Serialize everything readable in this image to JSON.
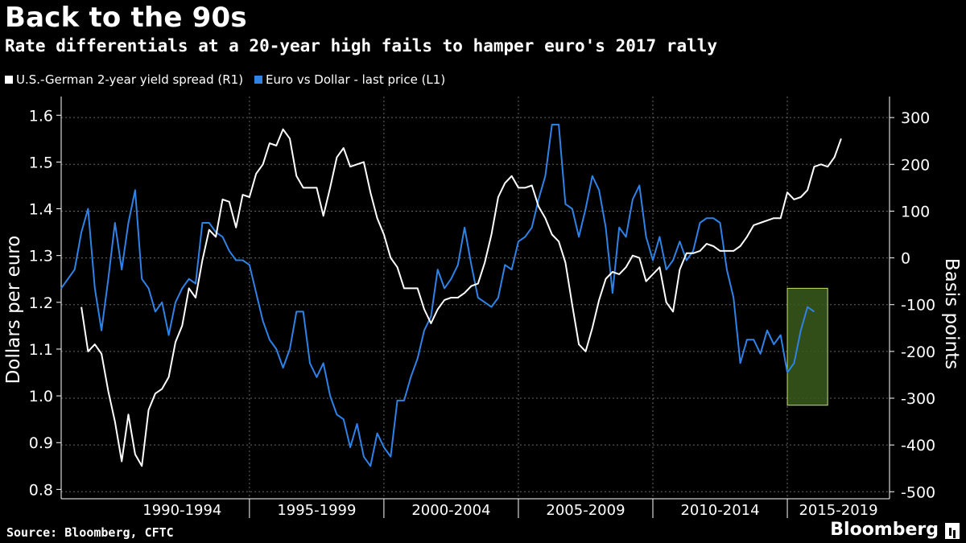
{
  "title": "Back to the 90s",
  "subtitle": "Rate differentials at a 20-year high fails to hamper euro's 2017 rally",
  "source": "Source: Bloomberg, CFTC",
  "brand": "Bloomberg",
  "colors": {
    "background": "#000000",
    "spread": "#ffffff",
    "euro": "#2f82e6",
    "highlight_fill": "#3a5a1c",
    "highlight_stroke": "#c8e06a",
    "grid": "#666666"
  },
  "chart_data": {
    "type": "line",
    "title": "Back to the 90s",
    "left_axis": {
      "label": "Dollars per euro",
      "ticks": [
        "0.8",
        "0.9",
        "1.0",
        "1.1",
        "1.2",
        "1.3",
        "1.4",
        "1.5",
        "1.6"
      ],
      "range": [
        0.78,
        1.64
      ]
    },
    "right_axis": {
      "label": "Basis points",
      "ticks": [
        "-500",
        "-400",
        "-300",
        "-200",
        "-100",
        "0",
        "100",
        "200",
        "300"
      ],
      "range": [
        -515,
        345
      ]
    },
    "x_axis": {
      "categories": [
        "1990-1994",
        "1995-1999",
        "2000-2004",
        "2005-2009",
        "2010-2014",
        "2015-2019"
      ],
      "range": [
        1988.0,
        2018.8
      ]
    },
    "grid": true,
    "legend_position": "top-left",
    "series": [
      {
        "name": "U.S.-German 2-year yield spread (R1)",
        "axis": "right",
        "points": [
          [
            1988.75,
            -105
          ],
          [
            1989.0,
            -200
          ],
          [
            1989.25,
            -185
          ],
          [
            1989.5,
            -205
          ],
          [
            1989.75,
            -285
          ],
          [
            1990.0,
            -350
          ],
          [
            1990.25,
            -435
          ],
          [
            1990.5,
            -335
          ],
          [
            1990.75,
            -420
          ],
          [
            1991.0,
            -445
          ],
          [
            1991.25,
            -325
          ],
          [
            1991.5,
            -290
          ],
          [
            1991.75,
            -280
          ],
          [
            1992.0,
            -255
          ],
          [
            1992.25,
            -180
          ],
          [
            1992.5,
            -145
          ],
          [
            1992.75,
            -65
          ],
          [
            1993.0,
            -85
          ],
          [
            1993.25,
            -5
          ],
          [
            1993.5,
            60
          ],
          [
            1993.75,
            45
          ],
          [
            1994.0,
            125
          ],
          [
            1994.25,
            120
          ],
          [
            1994.5,
            65
          ],
          [
            1994.75,
            135
          ],
          [
            1995.0,
            130
          ],
          [
            1995.25,
            180
          ],
          [
            1995.5,
            200
          ],
          [
            1995.75,
            245
          ],
          [
            1996.0,
            240
          ],
          [
            1996.25,
            275
          ],
          [
            1996.5,
            255
          ],
          [
            1996.75,
            175
          ],
          [
            1997.0,
            150
          ],
          [
            1997.25,
            150
          ],
          [
            1997.5,
            150
          ],
          [
            1997.75,
            90
          ],
          [
            1998.0,
            150
          ],
          [
            1998.25,
            215
          ],
          [
            1998.5,
            235
          ],
          [
            1998.75,
            195
          ],
          [
            1999.0,
            200
          ],
          [
            1999.25,
            205
          ],
          [
            1999.5,
            140
          ],
          [
            1999.75,
            85
          ],
          [
            2000.0,
            50
          ],
          [
            2000.25,
            0
          ],
          [
            2000.5,
            -20
          ],
          [
            2000.75,
            -65
          ],
          [
            2001.0,
            -65
          ],
          [
            2001.25,
            -65
          ],
          [
            2001.5,
            -110
          ],
          [
            2001.75,
            -140
          ],
          [
            2002.0,
            -110
          ],
          [
            2002.25,
            -90
          ],
          [
            2002.5,
            -85
          ],
          [
            2002.75,
            -85
          ],
          [
            2003.0,
            -75
          ],
          [
            2003.25,
            -60
          ],
          [
            2003.5,
            -55
          ],
          [
            2003.75,
            -10
          ],
          [
            2004.0,
            50
          ],
          [
            2004.25,
            130
          ],
          [
            2004.5,
            160
          ],
          [
            2004.75,
            175
          ],
          [
            2005.0,
            150
          ],
          [
            2005.25,
            150
          ],
          [
            2005.5,
            155
          ],
          [
            2005.75,
            110
          ],
          [
            2006.0,
            85
          ],
          [
            2006.25,
            50
          ],
          [
            2006.5,
            35
          ],
          [
            2006.75,
            -10
          ],
          [
            2007.0,
            -100
          ],
          [
            2007.25,
            -185
          ],
          [
            2007.5,
            -200
          ],
          [
            2007.75,
            -150
          ],
          [
            2008.0,
            -90
          ],
          [
            2008.25,
            -45
          ],
          [
            2008.5,
            -30
          ],
          [
            2008.75,
            -35
          ],
          [
            2009.0,
            -20
          ],
          [
            2009.25,
            5
          ],
          [
            2009.5,
            0
          ],
          [
            2009.75,
            -50
          ],
          [
            2010.0,
            -35
          ],
          [
            2010.25,
            -20
          ],
          [
            2010.5,
            -95
          ],
          [
            2010.75,
            -115
          ],
          [
            2011.0,
            -25
          ],
          [
            2011.25,
            10
          ],
          [
            2011.5,
            10
          ],
          [
            2011.75,
            15
          ],
          [
            2012.0,
            30
          ],
          [
            2012.25,
            25
          ],
          [
            2012.5,
            15
          ],
          [
            2012.75,
            15
          ],
          [
            2013.0,
            15
          ],
          [
            2013.25,
            25
          ],
          [
            2013.5,
            45
          ],
          [
            2013.75,
            70
          ],
          [
            2014.0,
            75
          ],
          [
            2014.25,
            80
          ],
          [
            2014.5,
            85
          ],
          [
            2014.75,
            85
          ],
          [
            2015.0,
            140
          ],
          [
            2015.25,
            125
          ],
          [
            2015.5,
            130
          ],
          [
            2015.75,
            145
          ],
          [
            2016.0,
            195
          ],
          [
            2016.25,
            200
          ],
          [
            2016.5,
            195
          ],
          [
            2016.75,
            215
          ],
          [
            2017.0,
            255
          ]
        ]
      },
      {
        "name": "Euro vs Dollar - last price (L1)",
        "axis": "left",
        "points": [
          [
            1988.0,
            1.23
          ],
          [
            1988.25,
            1.25
          ],
          [
            1988.5,
            1.27
          ],
          [
            1988.75,
            1.35
          ],
          [
            1989.0,
            1.4
          ],
          [
            1989.25,
            1.23
          ],
          [
            1989.5,
            1.14
          ],
          [
            1989.75,
            1.25
          ],
          [
            1990.0,
            1.37
          ],
          [
            1990.25,
            1.27
          ],
          [
            1990.5,
            1.37
          ],
          [
            1990.75,
            1.44
          ],
          [
            1991.0,
            1.25
          ],
          [
            1991.25,
            1.23
          ],
          [
            1991.5,
            1.18
          ],
          [
            1991.75,
            1.2
          ],
          [
            1992.0,
            1.13
          ],
          [
            1992.25,
            1.2
          ],
          [
            1992.5,
            1.23
          ],
          [
            1992.75,
            1.25
          ],
          [
            1993.0,
            1.24
          ],
          [
            1993.25,
            1.37
          ],
          [
            1993.5,
            1.37
          ],
          [
            1993.75,
            1.35
          ],
          [
            1994.0,
            1.34
          ],
          [
            1994.25,
            1.31
          ],
          [
            1994.5,
            1.29
          ],
          [
            1994.75,
            1.29
          ],
          [
            1995.0,
            1.28
          ],
          [
            1995.25,
            1.22
          ],
          [
            1995.5,
            1.16
          ],
          [
            1995.75,
            1.12
          ],
          [
            1996.0,
            1.1
          ],
          [
            1996.25,
            1.06
          ],
          [
            1996.5,
            1.1
          ],
          [
            1996.75,
            1.18
          ],
          [
            1997.0,
            1.18
          ],
          [
            1997.25,
            1.07
          ],
          [
            1997.5,
            1.04
          ],
          [
            1997.75,
            1.07
          ],
          [
            1998.0,
            1.0
          ],
          [
            1998.25,
            0.96
          ],
          [
            1998.5,
            0.95
          ],
          [
            1998.75,
            0.89
          ],
          [
            1999.0,
            0.94
          ],
          [
            1999.25,
            0.87
          ],
          [
            1999.5,
            0.85
          ],
          [
            1999.75,
            0.92
          ],
          [
            2000.0,
            0.89
          ],
          [
            2000.25,
            0.87
          ],
          [
            2000.5,
            0.99
          ],
          [
            2000.75,
            0.99
          ],
          [
            2001.0,
            1.04
          ],
          [
            2001.25,
            1.08
          ],
          [
            2001.5,
            1.14
          ],
          [
            2001.75,
            1.17
          ],
          [
            2002.0,
            1.27
          ],
          [
            2002.25,
            1.23
          ],
          [
            2002.5,
            1.25
          ],
          [
            2002.75,
            1.28
          ],
          [
            2003.0,
            1.36
          ],
          [
            2003.25,
            1.28
          ],
          [
            2003.5,
            1.21
          ],
          [
            2003.75,
            1.2
          ],
          [
            2004.0,
            1.19
          ],
          [
            2004.25,
            1.21
          ],
          [
            2004.5,
            1.28
          ],
          [
            2004.75,
            1.27
          ],
          [
            2005.0,
            1.33
          ],
          [
            2005.25,
            1.34
          ],
          [
            2005.5,
            1.36
          ],
          [
            2005.75,
            1.42
          ],
          [
            2006.0,
            1.47
          ],
          [
            2006.25,
            1.58
          ],
          [
            2006.5,
            1.58
          ],
          [
            2006.75,
            1.41
          ],
          [
            2007.0,
            1.4
          ],
          [
            2007.25,
            1.34
          ],
          [
            2007.5,
            1.4
          ],
          [
            2007.75,
            1.47
          ],
          [
            2008.0,
            1.44
          ],
          [
            2008.25,
            1.36
          ],
          [
            2008.5,
            1.22
          ],
          [
            2008.75,
            1.36
          ],
          [
            2009.0,
            1.34
          ],
          [
            2009.25,
            1.42
          ],
          [
            2009.5,
            1.45
          ],
          [
            2009.75,
            1.34
          ],
          [
            2010.0,
            1.29
          ],
          [
            2010.25,
            1.34
          ],
          [
            2010.5,
            1.27
          ],
          [
            2010.75,
            1.29
          ],
          [
            2011.0,
            1.33
          ],
          [
            2011.25,
            1.29
          ],
          [
            2011.5,
            1.31
          ],
          [
            2011.75,
            1.37
          ],
          [
            2012.0,
            1.38
          ],
          [
            2012.25,
            1.38
          ],
          [
            2012.5,
            1.37
          ],
          [
            2012.75,
            1.27
          ],
          [
            2013.0,
            1.21
          ],
          [
            2013.25,
            1.07
          ],
          [
            2013.5,
            1.12
          ],
          [
            2013.75,
            1.12
          ],
          [
            2014.0,
            1.09
          ],
          [
            2014.25,
            1.14
          ],
          [
            2014.5,
            1.11
          ],
          [
            2014.75,
            1.13
          ],
          [
            2015.0,
            1.05
          ],
          [
            2015.25,
            1.07
          ],
          [
            2015.5,
            1.14
          ],
          [
            2015.75,
            1.19
          ],
          [
            2016.0,
            1.18
          ]
        ]
      }
    ],
    "highlight": {
      "x_range": [
        2015.0,
        2016.5
      ],
      "y_range_left": [
        0.98,
        1.23
      ]
    }
  }
}
